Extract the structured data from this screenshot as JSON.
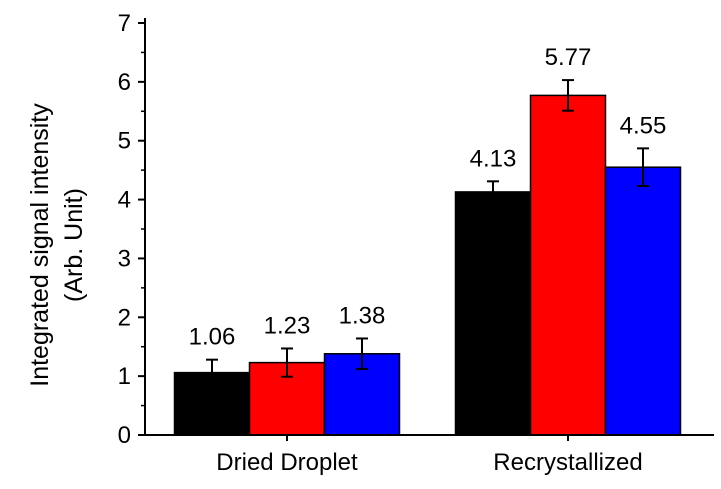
{
  "chart_data": {
    "type": "bar",
    "title": "",
    "xlabel": "",
    "ylabel": "Integrated signal intensity",
    "ylabel_unit": "(Arb. Unit)",
    "ylim": [
      0,
      7
    ],
    "yticks": [
      0,
      1,
      2,
      3,
      4,
      5,
      6,
      7
    ],
    "categories": [
      "Dried Droplet",
      "Recrystallized"
    ],
    "series": [
      {
        "name": "series-1",
        "color": "#000000",
        "values": [
          1.06,
          4.13
        ],
        "errors": [
          0.22,
          0.18
        ],
        "labels": [
          "1.06",
          "4.13"
        ]
      },
      {
        "name": "series-2",
        "color": "#ff0000",
        "values": [
          1.23,
          5.77
        ],
        "errors": [
          0.24,
          0.26
        ],
        "labels": [
          "1.23",
          "5.77"
        ]
      },
      {
        "name": "series-3",
        "color": "#0000ff",
        "values": [
          1.38,
          4.55
        ],
        "errors": [
          0.26,
          0.32
        ],
        "labels": [
          "1.38",
          "4.55"
        ]
      }
    ],
    "legend": "none",
    "grid": false
  }
}
